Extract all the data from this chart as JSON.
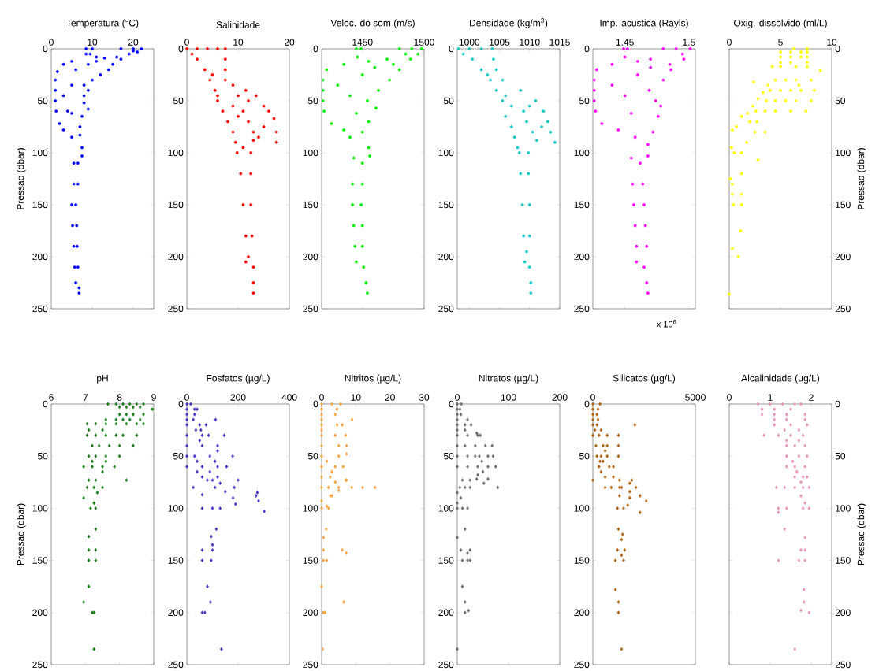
{
  "chart_data": [
    {
      "type": "scatter",
      "title": "Temperatura (°C)",
      "ylabel": "Pressao (dbar)",
      "color": "#0000ff",
      "marker": "circle",
      "xlim": [
        0,
        25
      ],
      "xticks": [
        0,
        10,
        20
      ],
      "ylim": [
        250,
        0
      ],
      "yticks": [
        0,
        50,
        100,
        150,
        200,
        250
      ],
      "x": [
        8.5,
        10,
        8.5,
        9.5,
        17,
        20,
        22,
        21,
        19,
        16,
        13,
        11,
        5,
        3,
        17,
        15,
        14,
        12,
        1.5,
        1,
        1,
        1,
        1.2,
        2,
        3,
        10,
        8,
        9,
        8,
        8,
        9,
        7.5,
        7,
        5,
        7,
        7.5,
        7.5,
        5.5,
        6.5,
        5.5,
        6.5,
        5,
        6,
        5.2,
        6.2,
        5.5,
        6.3,
        5.7,
        6.5,
        6,
        6.8,
        6.8,
        4,
        5,
        3,
        5,
        6,
        9,
        11,
        20
      ],
      "values": [
        0,
        0,
        5,
        5,
        0,
        0,
        0,
        3,
        5,
        8,
        9,
        8,
        12,
        15,
        10,
        15,
        20,
        25,
        22,
        30,
        40,
        50,
        60,
        72,
        78,
        30,
        35,
        40,
        45,
        52,
        58,
        65,
        75,
        85,
        83,
        95,
        103,
        110,
        110,
        130,
        130,
        150,
        150,
        170,
        170,
        190,
        190,
        210,
        210,
        225,
        230,
        235,
        60,
        62,
        45,
        35,
        20,
        15,
        12,
        2
      ]
    },
    {
      "type": "scatter",
      "title": "Salinidade",
      "color": "#ff0000",
      "marker": "circle",
      "xlim": [
        0,
        20
      ],
      "xticks": [
        0,
        10,
        20
      ],
      "ylim": [
        250,
        0
      ],
      "yticks": [
        0,
        50,
        100,
        150,
        200,
        250
      ],
      "x": [
        0,
        2,
        4,
        6,
        7.5,
        1,
        7.5,
        2,
        3.5,
        7.5,
        4.5,
        7.5,
        9,
        5.5,
        11.5,
        6,
        13.5,
        15,
        16,
        17,
        17.5,
        17.5,
        15,
        14,
        13,
        13,
        11,
        12,
        9,
        10,
        7,
        8,
        9,
        9.5,
        9.8,
        12.5,
        11,
        10.5,
        12.5,
        11,
        12.5,
        11.5,
        12.7,
        11.5,
        12,
        13,
        13,
        13,
        5,
        6,
        12,
        10
      ],
      "values": [
        0,
        0,
        0,
        0,
        0,
        5,
        10,
        10,
        20,
        20,
        30,
        30,
        35,
        40,
        40,
        50,
        45,
        55,
        60,
        67,
        80,
        90,
        75,
        85,
        88,
        80,
        60,
        70,
        55,
        65,
        60,
        70,
        80,
        90,
        100,
        100,
        95,
        120,
        120,
        150,
        150,
        180,
        180,
        205,
        200,
        210,
        225,
        235,
        25,
        45,
        50,
        45
      ]
    },
    {
      "type": "scatter",
      "title": "Veloc. do som (m/s)",
      "color": "#00ee00",
      "marker": "circle",
      "xlim": [
        1417,
        1500
      ],
      "xticks": [
        1450,
        1500
      ],
      "ylim": [
        250,
        0
      ],
      "yticks": [
        0,
        50,
        100,
        150,
        200,
        250
      ],
      "x": [
        1445,
        1449,
        1446,
        1480,
        1490,
        1498,
        1495,
        1489,
        1470,
        1455,
        1435,
        1421,
        1480,
        1472,
        1418,
        1418,
        1463,
        1418,
        1454,
        1461,
        1419,
        1455,
        1425,
        1435,
        1450,
        1440,
        1455,
        1456,
        1443,
        1450,
        1442,
        1450,
        1442,
        1449,
        1443,
        1450,
        1444,
        1450,
        1445,
        1451,
        1453,
        1454,
        1440,
        1445,
        1430,
        1450,
        1460,
        1475,
        1485
      ],
      "values": [
        0,
        0,
        8,
        0,
        0,
        0,
        5,
        10,
        10,
        12,
        15,
        20,
        20,
        30,
        30,
        40,
        40,
        50,
        50,
        57,
        60,
        70,
        72,
        78,
        80,
        85,
        95,
        103,
        105,
        110,
        130,
        130,
        150,
        150,
        170,
        170,
        190,
        190,
        205,
        210,
        225,
        235,
        45,
        62,
        35,
        25,
        18,
        15,
        5
      ]
    },
    {
      "type": "scatter",
      "title": "Densidade (kg/m$^{3}$)",
      "color": "#1fc8c8",
      "marker": "circle",
      "xlim": [
        998,
        1015
      ],
      "xticks": [
        1000,
        1005,
        1010,
        1015
      ],
      "ylim": [
        250,
        0
      ],
      "yticks": [
        0,
        50,
        100,
        150,
        200,
        250
      ],
      "x": [
        998.2,
        1000,
        1002,
        1003.8,
        999,
        1004,
        1000.5,
        1002,
        1004.5,
        1003.5,
        1005.5,
        1004.5,
        1008.5,
        1005.5,
        1011,
        1012.3,
        1013,
        1013.5,
        1014.2,
        1012,
        1011.2,
        1010.5,
        1009,
        1007,
        1006,
        1009.5,
        1007,
        1007.5,
        1008,
        1008.3,
        1009.8,
        1008.5,
        1009.8,
        1008.8,
        1010,
        1009,
        1010,
        1009.2,
        1009.5,
        1010,
        1010.2,
        1010.2,
        1006,
        1003,
        1010
      ],
      "values": [
        0,
        0,
        0,
        0,
        5,
        10,
        10,
        20,
        20,
        30,
        30,
        40,
        40,
        50,
        50,
        60,
        70,
        80,
        90,
        75,
        88,
        80,
        60,
        55,
        65,
        70,
        75,
        85,
        95,
        100,
        100,
        120,
        120,
        150,
        150,
        180,
        180,
        205,
        195,
        210,
        225,
        235,
        45,
        25,
        55
      ]
    },
    {
      "type": "scatter",
      "title": "Imp. acustica (Rayls)",
      "annotations": [
        "x 10$^{6}$"
      ],
      "color": "#ff00ff",
      "marker": "circle",
      "xlim": [
        1.425,
        1.505
      ],
      "xticks": [
        1.45,
        1.5
      ],
      "ylim": [
        250,
        0
      ],
      "yticks": [
        0,
        50,
        100,
        150,
        200,
        250
      ],
      "x": [
        1.449,
        1.452,
        1.45,
        1.48,
        1.49,
        1.501,
        1.496,
        1.47,
        1.46,
        1.44,
        1.428,
        1.486,
        1.48,
        1.426,
        1.426,
        1.469,
        1.426,
        1.474,
        1.478,
        1.427,
        1.476,
        1.432,
        1.445,
        1.472,
        1.458,
        1.468,
        1.468,
        1.455,
        1.462,
        1.456,
        1.464,
        1.457,
        1.465,
        1.458,
        1.466,
        1.459,
        1.467,
        1.459,
        1.465,
        1.467,
        1.468,
        1.45,
        1.455,
        1.44,
        1.46,
        1.47,
        1.485,
        1.495
      ],
      "values": [
        0,
        0,
        8,
        0,
        0,
        0,
        10,
        10,
        12,
        15,
        20,
        20,
        30,
        30,
        40,
        40,
        50,
        50,
        55,
        60,
        65,
        72,
        78,
        80,
        85,
        92,
        103,
        105,
        110,
        130,
        130,
        150,
        150,
        170,
        170,
        190,
        190,
        205,
        210,
        225,
        235,
        45,
        62,
        35,
        25,
        18,
        15,
        5
      ]
    },
    {
      "type": "scatter",
      "title": "Oxig. dissolvido (ml/L)",
      "ylabel": "Pressao (dbar)",
      "color": "#ffff00",
      "marker": "circle",
      "xlim": [
        0,
        10
      ],
      "xticks": [
        0,
        5,
        10
      ],
      "ylim": [
        250,
        0
      ],
      "yticks": [
        0,
        50,
        100,
        150,
        200,
        250
      ],
      "x": [
        6.3,
        7.6,
        5,
        6,
        7,
        7.6,
        5,
        6,
        7,
        7.6,
        5,
        6,
        7.6,
        4.2,
        5,
        6.5,
        7.6,
        8.9,
        4.5,
        5.5,
        6.5,
        8,
        3.8,
        6.8,
        4,
        5,
        6,
        7,
        8.3,
        3.6,
        4.5,
        5.5,
        6.5,
        8,
        2.6,
        3.5,
        4.5,
        6,
        7.5,
        2.7,
        2.4,
        3.3,
        2.8,
        2.3,
        1.8,
        1.2,
        2,
        3.5,
        2.5,
        0.3,
        0.7,
        1.7,
        0.2,
        0.5,
        1.2,
        2.8,
        1.2,
        0.1,
        0.3,
        0.3,
        1.2,
        0.4,
        1.2,
        1.1,
        0.3,
        0.9,
        0
      ],
      "values": [
        0,
        0,
        3,
        3,
        3,
        3,
        8,
        8,
        8,
        8,
        13,
        13,
        13,
        17,
        17,
        17,
        17,
        21,
        30,
        30,
        30,
        30,
        35,
        35,
        40,
        40,
        40,
        40,
        40,
        50,
        50,
        50,
        50,
        50,
        60,
        60,
        60,
        60,
        60,
        70,
        32,
        42,
        48,
        55,
        62,
        65,
        70,
        80,
        80,
        78,
        75,
        90,
        95,
        100,
        100,
        107,
        120,
        125,
        130,
        140,
        140,
        150,
        150,
        175,
        192,
        200,
        236
      ]
    },
    {
      "type": "scatter",
      "title": "pH",
      "ylabel": "Pressao (dbar)",
      "color": "#1f7f1f",
      "marker": "diamond",
      "xlim": [
        6,
        9
      ],
      "xticks": [
        6,
        7,
        8,
        9
      ],
      "ylim": [
        250,
        0
      ],
      "yticks": [
        0,
        50,
        100,
        150,
        200,
        250
      ],
      "x": [
        7.66,
        7.9,
        8.1,
        8.3,
        8.5,
        8.7,
        8,
        8.2,
        8.4,
        8.6,
        8.96,
        8,
        8.2,
        8.4,
        8.7,
        7.6,
        7.9,
        8.1,
        8.3,
        8.6,
        7.05,
        7.3,
        7.6,
        7.9,
        8.2,
        8.5,
        8.7,
        7.1,
        7.5,
        7.05,
        7.3,
        7.6,
        7.9,
        8.1,
        8.5,
        7.2,
        7.4,
        7.7,
        8,
        8.4,
        7.1,
        7.3,
        7.6,
        8,
        7.2,
        7.6,
        6.95,
        7.2,
        7.5,
        7.85,
        7.5,
        7.1,
        7.3,
        8.2,
        7.05,
        7.25,
        7.5,
        7.35,
        6.95,
        7.25,
        7.15,
        7.3,
        7.3,
        7.1,
        7.1,
        7.3,
        7.1,
        7.3,
        7.1,
        6.95,
        7.2,
        7.25,
        7.25
      ],
      "values": [
        0,
        0,
        0,
        0,
        0,
        0,
        3,
        3,
        3,
        3,
        5,
        10,
        10,
        10,
        10,
        15,
        15,
        15,
        15,
        15,
        19,
        19,
        19,
        19,
        19,
        19,
        19,
        25,
        25,
        30,
        30,
        30,
        30,
        30,
        30,
        40,
        40,
        40,
        40,
        40,
        50,
        50,
        50,
        50,
        55,
        55,
        60,
        60,
        60,
        60,
        65,
        73,
        73,
        73,
        80,
        80,
        80,
        85,
        90,
        95,
        100,
        100,
        120,
        127,
        140,
        140,
        150,
        150,
        175,
        190,
        200,
        200,
        235
      ]
    },
    {
      "type": "scatter",
      "title": "Fosfatos (µg/L)",
      "color": "#4b3cc8",
      "marker": "diamond",
      "xlim": [
        0,
        400
      ],
      "xticks": [
        0,
        200,
        400
      ],
      "ylim": [
        250,
        0
      ],
      "yticks": [
        0,
        50,
        100,
        150,
        200,
        250
      ],
      "x": [
        0,
        15,
        0,
        30,
        40,
        0,
        30,
        0,
        25,
        112,
        0,
        50,
        75,
        35,
        55,
        0,
        60,
        85,
        146,
        50,
        0,
        60,
        120,
        120,
        0,
        30,
        90,
        179,
        40,
        110,
        0,
        60,
        120,
        155,
        40,
        90,
        60,
        120,
        80,
        100,
        200,
        130,
        25,
        110,
        185,
        150,
        60,
        275,
        270,
        180,
        280,
        190,
        60,
        100,
        130,
        302,
        115,
        95,
        100,
        60,
        100,
        60,
        95,
        80,
        92,
        60,
        70,
        135
      ],
      "values": [
        0,
        0,
        5,
        5,
        5,
        10,
        10,
        15,
        15,
        15,
        20,
        20,
        20,
        25,
        25,
        30,
        30,
        30,
        30,
        35,
        40,
        40,
        40,
        45,
        50,
        50,
        50,
        50,
        55,
        55,
        60,
        60,
        60,
        60,
        65,
        65,
        70,
        70,
        73,
        73,
        73,
        76,
        80,
        80,
        80,
        84,
        87,
        85,
        88,
        90,
        93,
        96,
        100,
        100,
        100,
        103,
        120,
        127,
        135,
        140,
        140,
        150,
        150,
        175,
        190,
        200,
        200,
        235
      ]
    },
    {
      "type": "scatter",
      "title": "Nitritos (µg/L)",
      "color": "#f4a340",
      "marker": "diamond",
      "xlim": [
        0,
        30
      ],
      "xticks": [
        0,
        10,
        20,
        30
      ],
      "ylim": [
        250,
        0
      ],
      "yticks": [
        0,
        50,
        100,
        150,
        200,
        250
      ],
      "x": [
        0,
        3,
        5.5,
        0,
        4.5,
        0,
        4,
        0,
        8.9,
        0,
        4.5,
        6,
        0,
        0,
        4,
        7,
        0,
        5,
        7.3,
        7.3,
        0,
        5,
        1.5,
        0,
        4,
        6.3,
        3,
        0,
        2.5,
        7,
        7.3,
        4,
        0,
        2,
        5,
        8.8,
        12,
        15.6,
        5,
        2.5,
        3,
        0,
        1.5,
        0,
        2,
        1.3,
        0.5,
        0.5,
        6,
        7.2,
        0.5,
        1.5,
        0,
        6.5,
        0.5,
        1,
        0.3
      ],
      "values": [
        0,
        0,
        0,
        5,
        5,
        10,
        10,
        15,
        15,
        20,
        20,
        20,
        25,
        30,
        30,
        30,
        40,
        40,
        40,
        48,
        50,
        50,
        55,
        60,
        60,
        60,
        65,
        70,
        70,
        73,
        73,
        75,
        80,
        80,
        80,
        80,
        80,
        80,
        83,
        88,
        88,
        93,
        98,
        100,
        100,
        120,
        128,
        140,
        140,
        143,
        150,
        150,
        175,
        190,
        200,
        200,
        235
      ]
    },
    {
      "type": "scatter",
      "title": "Nitratos (µg/L)",
      "color": "#707070",
      "marker": "diamond",
      "xlim": [
        0,
        200
      ],
      "xticks": [
        0,
        100,
        200
      ],
      "ylim": [
        250,
        0
      ],
      "yticks": [
        0,
        50,
        100,
        150,
        200,
        250
      ],
      "x": [
        0,
        8,
        0,
        5,
        0,
        7,
        0,
        20,
        0,
        15,
        27,
        0,
        15,
        38,
        0,
        20,
        40,
        45,
        0,
        15,
        35,
        55,
        68,
        0,
        20,
        35,
        43,
        60,
        70,
        48,
        0,
        20,
        40,
        60,
        75,
        50,
        40,
        38,
        60,
        10,
        25,
        52,
        5,
        15,
        25,
        79,
        0,
        7,
        0,
        0,
        10,
        20,
        15,
        0,
        7,
        25,
        20,
        10,
        20,
        25,
        10,
        15,
        22,
        15,
        0
      ],
      "values": [
        0,
        0,
        5,
        5,
        10,
        10,
        15,
        15,
        20,
        20,
        20,
        25,
        25,
        28,
        30,
        30,
        30,
        30,
        40,
        40,
        40,
        40,
        40,
        50,
        50,
        50,
        50,
        50,
        50,
        55,
        60,
        60,
        60,
        60,
        60,
        65,
        68,
        72,
        72,
        73,
        73,
        76,
        80,
        80,
        80,
        80,
        85,
        90,
        95,
        100,
        100,
        100,
        120,
        128,
        140,
        140,
        143,
        150,
        150,
        150,
        175,
        190,
        198,
        200,
        235
      ]
    },
    {
      "type": "scatter",
      "title": "Silicatos (µg/L)",
      "color": "#b06414",
      "marker": "diamond",
      "xlim": [
        0,
        5000
      ],
      "xticks": [
        0,
        5000
      ],
      "ylim": [
        250,
        0
      ],
      "yticks": [
        0,
        50,
        100,
        150,
        200,
        250
      ],
      "x": [
        0,
        350,
        0,
        250,
        0,
        200,
        0,
        250,
        0,
        200,
        2050,
        100,
        400,
        0,
        300,
        700,
        1250,
        150,
        500,
        700,
        1250,
        600,
        200,
        400,
        700,
        1250,
        350,
        500,
        300,
        800,
        1000,
        400,
        600,
        1000,
        0,
        1300,
        1900,
        1800,
        600,
        900,
        1300,
        1400,
        2100,
        1800,
        1300,
        2300,
        1800,
        2600,
        1700,
        1200,
        1500,
        2300,
        1250,
        1450,
        1400,
        1200,
        1550,
        1400,
        1100,
        1500,
        1100,
        1250,
        1250,
        1400
      ],
      "values": [
        0,
        0,
        5,
        5,
        10,
        10,
        15,
        15,
        20,
        20,
        20,
        25,
        25,
        30,
        30,
        30,
        30,
        40,
        40,
        40,
        40,
        45,
        50,
        50,
        50,
        50,
        55,
        55,
        60,
        60,
        60,
        65,
        70,
        70,
        73,
        73,
        73,
        76,
        80,
        80,
        80,
        80,
        80,
        84,
        88,
        88,
        90,
        93,
        97,
        100,
        100,
        104,
        120,
        125,
        130,
        140,
        140,
        145,
        150,
        150,
        178,
        190,
        200,
        235
      ]
    },
    {
      "type": "scatter",
      "title": "Alcalinidade (µg/L)",
      "ylabel": "Pressao (dbar)",
      "color": "#e896b8",
      "marker": "diamond",
      "xlim": [
        0,
        2.5
      ],
      "xticks": [
        0,
        1,
        2
      ],
      "ylim": [
        250,
        0
      ],
      "yticks": [
        0,
        50,
        100,
        150,
        200,
        250
      ],
      "x": [
        0.7,
        1,
        1.3,
        1.6,
        1.75,
        0.8,
        1.1,
        1.5,
        0.8,
        1.1,
        1.4,
        1.85,
        1.1,
        1.4,
        1.85,
        1.1,
        1.5,
        1.9,
        1.35,
        1.7,
        0.85,
        1.2,
        1.5,
        1.8,
        1.4,
        1.7,
        1.4,
        1.6,
        1.85,
        1.4,
        1.7,
        1.9,
        1.55,
        1.4,
        1.6,
        1.85,
        1.65,
        1.6,
        1.8,
        1.9,
        1.75,
        1.15,
        1.35,
        1.6,
        1.8,
        1.95,
        1.75,
        1.85,
        1.2,
        1.4,
        1.8,
        1.95,
        1.2,
        1.35,
        1.85,
        1.75,
        1.85,
        1.2,
        1.7,
        1.85,
        1.82,
        1.82,
        1.75,
        1.95,
        1.6
      ],
      "values": [
        0,
        0,
        0,
        0,
        0,
        5,
        5,
        5,
        10,
        10,
        10,
        10,
        15,
        15,
        15,
        20,
        20,
        20,
        25,
        25,
        30,
        30,
        30,
        30,
        35,
        35,
        40,
        40,
        40,
        50,
        50,
        50,
        55,
        60,
        60,
        60,
        65,
        70,
        70,
        70,
        75,
        80,
        80,
        80,
        80,
        80,
        88,
        95,
        100,
        100,
        100,
        100,
        104,
        120,
        128,
        140,
        140,
        150,
        150,
        150,
        178,
        190,
        198,
        200,
        235
      ]
    }
  ]
}
